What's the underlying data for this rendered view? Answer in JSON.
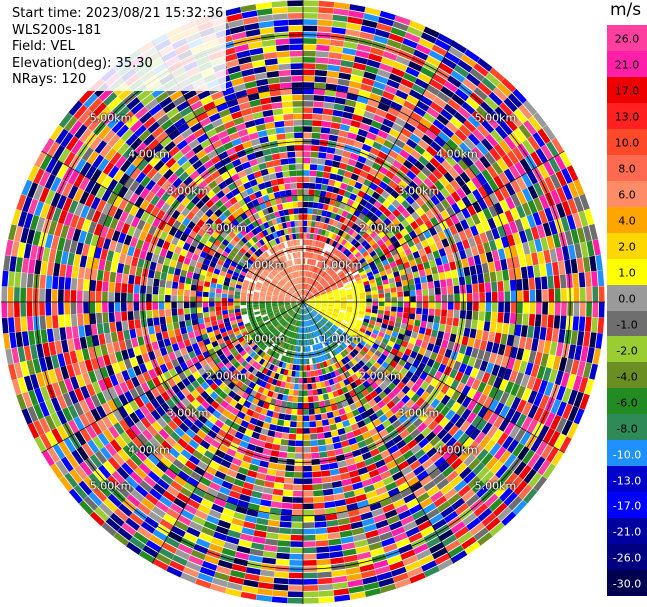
{
  "info": {
    "start_time": "Start time: 2023/08/21 15:32:36",
    "instrument": "WLS200s-181",
    "field": "Field: VEL",
    "elevation": "Elevation(deg): 35.30",
    "nrays": "NRays: 120"
  },
  "colorbar": {
    "unit": "m/s",
    "ticks": [
      "26.0",
      "21.0",
      "17.0",
      "13.0",
      "10.0",
      "8.0",
      "6.0",
      "4.0",
      "2.0",
      "1.0",
      "0.0",
      "-1.0",
      "-2.0",
      "-4.0",
      "-6.0",
      "-8.0",
      "-10.0",
      "-13.0",
      "-17.0",
      "-21.0",
      "-26.0",
      "-30.0"
    ],
    "colors": [
      "#ff3fa0",
      "#ff1fa8",
      "#ee0000",
      "#ff2020",
      "#ff4a2a",
      "#ff6a50",
      "#ff8c66",
      "#ffa500",
      "#ffd700",
      "#ffff00",
      "#9a9a9a",
      "#6e6e6e",
      "#9acd32",
      "#6b8e23",
      "#228b22",
      "#2e8b57",
      "#1e90ff",
      "#0000cd",
      "#0000ff",
      "#0000a0",
      "#000080",
      "#000050"
    ]
  },
  "chart_data": {
    "type": "heatmap",
    "title": "",
    "field": "VEL",
    "unit": "m/s",
    "nrays": 120,
    "elevation_deg": 35.3,
    "range_rings_km": [
      1.0,
      2.0,
      3.0,
      4.0,
      5.0
    ],
    "range_ring_labels": [
      "1.00km",
      "2.00km",
      "3.00km",
      "4.00km",
      "5.00km"
    ],
    "colorbar_range": [
      -30.0,
      26.0
    ],
    "near_range_pattern": {
      "north_east": "positive (orange to red, ~6 to 13 m/s)",
      "east": "positive (yellow, ~2 to 4 m/s)",
      "south_east": "negative (blue, ~-8 to -10 m/s)",
      "south_west": "negative (green, ~-4 to -6 m/s)",
      "north_west": "positive (salmon, ~6 to 8 m/s)"
    },
    "far_range": "noise (random values across full scale)"
  }
}
